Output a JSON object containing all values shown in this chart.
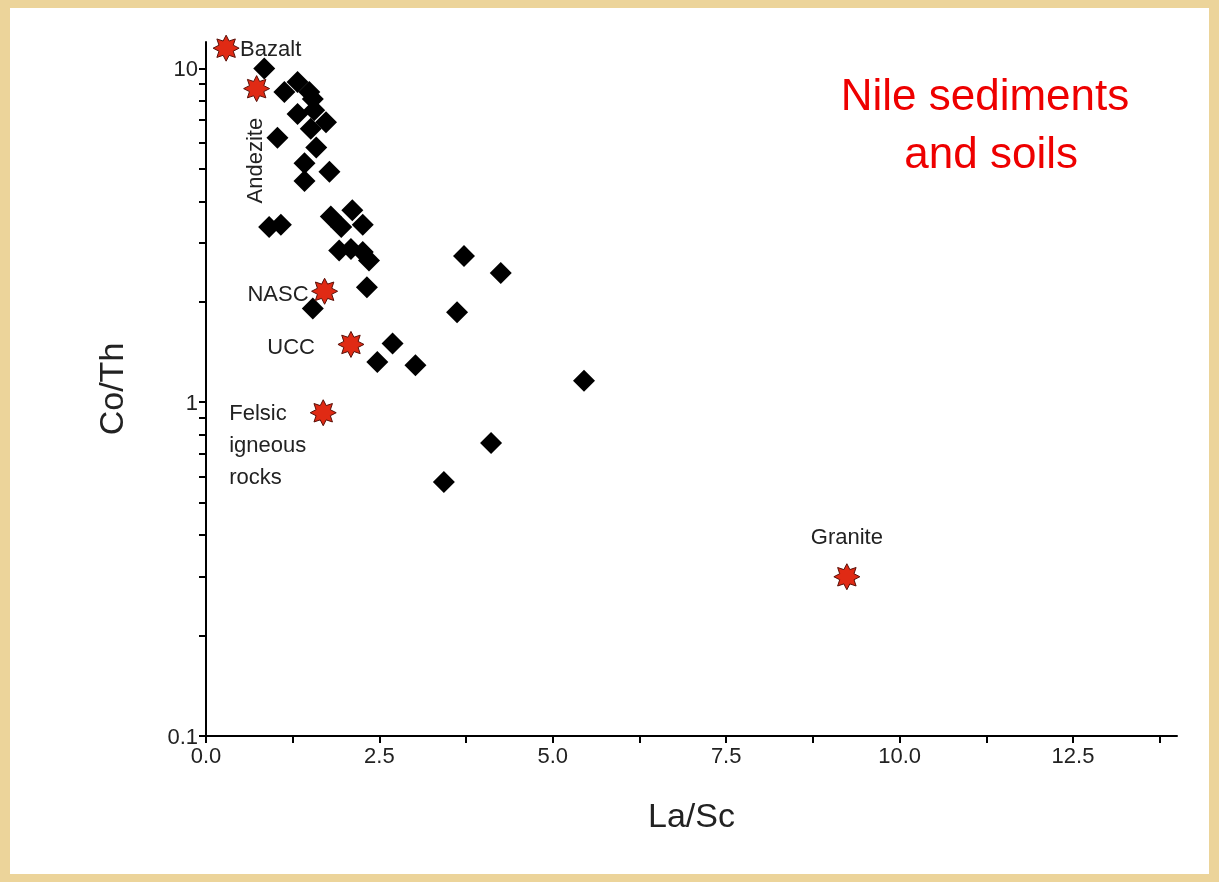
{
  "chart_data": {
    "type": "scatter",
    "title": "Nile sediments\n and soils",
    "xlabel": "La/Sc",
    "ylabel": "Co/Th",
    "log": "y",
    "xlim": [
      0,
      14
    ],
    "xticks": [
      {
        "value": 0,
        "label": "0.0"
      },
      {
        "value": 1.25,
        "label": null
      },
      2.5,
      {
        "value": 3.75,
        "label": null
      },
      {
        "value": 5,
        "label": "5.0"
      },
      {
        "value": 6.25,
        "label": null
      },
      7.5,
      {
        "value": 8.75,
        "label": null
      },
      {
        "value": 10,
        "label": "10.0"
      },
      {
        "value": 11.25,
        "label": null
      },
      12.5,
      {
        "value": 13.75,
        "label": null
      }
    ],
    "ylim": [
      0.1,
      12
    ],
    "yticks": [
      0.1,
      {
        "value": 0.2,
        "label": null
      },
      {
        "value": 0.3,
        "label": null
      },
      {
        "value": 0.4,
        "label": null
      },
      {
        "value": 0.5,
        "label": null
      },
      {
        "value": 0.6,
        "label": null
      },
      {
        "value": 0.7,
        "label": null
      },
      {
        "value": 0.8,
        "label": null
      },
      {
        "value": 0.9,
        "label": null
      },
      1,
      {
        "value": 2,
        "label": null
      },
      {
        "value": 3,
        "label": null
      },
      {
        "value": 4,
        "label": null
      },
      {
        "value": 5,
        "label": null
      },
      {
        "value": 6,
        "label": null
      },
      {
        "value": 7,
        "label": null
      },
      {
        "value": 8,
        "label": null
      },
      {
        "value": 9,
        "label": null
      },
      10
    ],
    "series": [
      {
        "color": "#000000",
        "marker": "diamond",
        "x": [
          0.84,
          1.13,
          1.32,
          1.49,
          1.54,
          1.32,
          1.56,
          1.73,
          1.51,
          1.03,
          1.59,
          1.42,
          1.78,
          1.42,
          0.91,
          1.08,
          1.8,
          2.11,
          1.95,
          2.26,
          1.92,
          2.09,
          2.26,
          2.35,
          2.32,
          1.54,
          3.72,
          4.25,
          3.62,
          2.69,
          2.47,
          3.02,
          5.45,
          4.11,
          3.43
        ],
        "values": [
          10,
          8.5,
          9.1,
          8.5,
          8.1,
          7.3,
          7.5,
          6.9,
          6.6,
          6.2,
          5.8,
          5.2,
          4.9,
          4.6,
          3.35,
          3.4,
          3.6,
          3.76,
          3.35,
          3.4,
          2.85,
          2.88,
          2.82,
          2.66,
          2.21,
          1.91,
          2.74,
          2.44,
          1.86,
          1.5,
          1.32,
          1.29,
          1.16,
          0.755,
          0.577
        ]
      },
      {
        "color": "#e02a14",
        "marker": "star",
        "x": [
          0.29,
          0.73,
          1.71,
          2.09,
          1.69,
          9.24
        ],
        "values": [
          11.5,
          8.7,
          2.15,
          1.49,
          0.93,
          0.3
        ]
      }
    ],
    "annotations": [
      {
        "text": "Bazalt",
        "x": 0.29,
        "y": 11.5
      },
      {
        "text": "Andezite",
        "x": 0.73,
        "y": 8.7
      },
      {
        "text": "NASC",
        "x": 1.71,
        "y": 2.15
      },
      {
        "text": "UCC",
        "x": 2.09,
        "y": 1.49
      },
      {
        "text": "Felsic\nigneous\nrocks",
        "x": 1.69,
        "y": 0.93
      },
      {
        "text": "Granite",
        "x": 9.24,
        "y": 0.3
      }
    ]
  }
}
